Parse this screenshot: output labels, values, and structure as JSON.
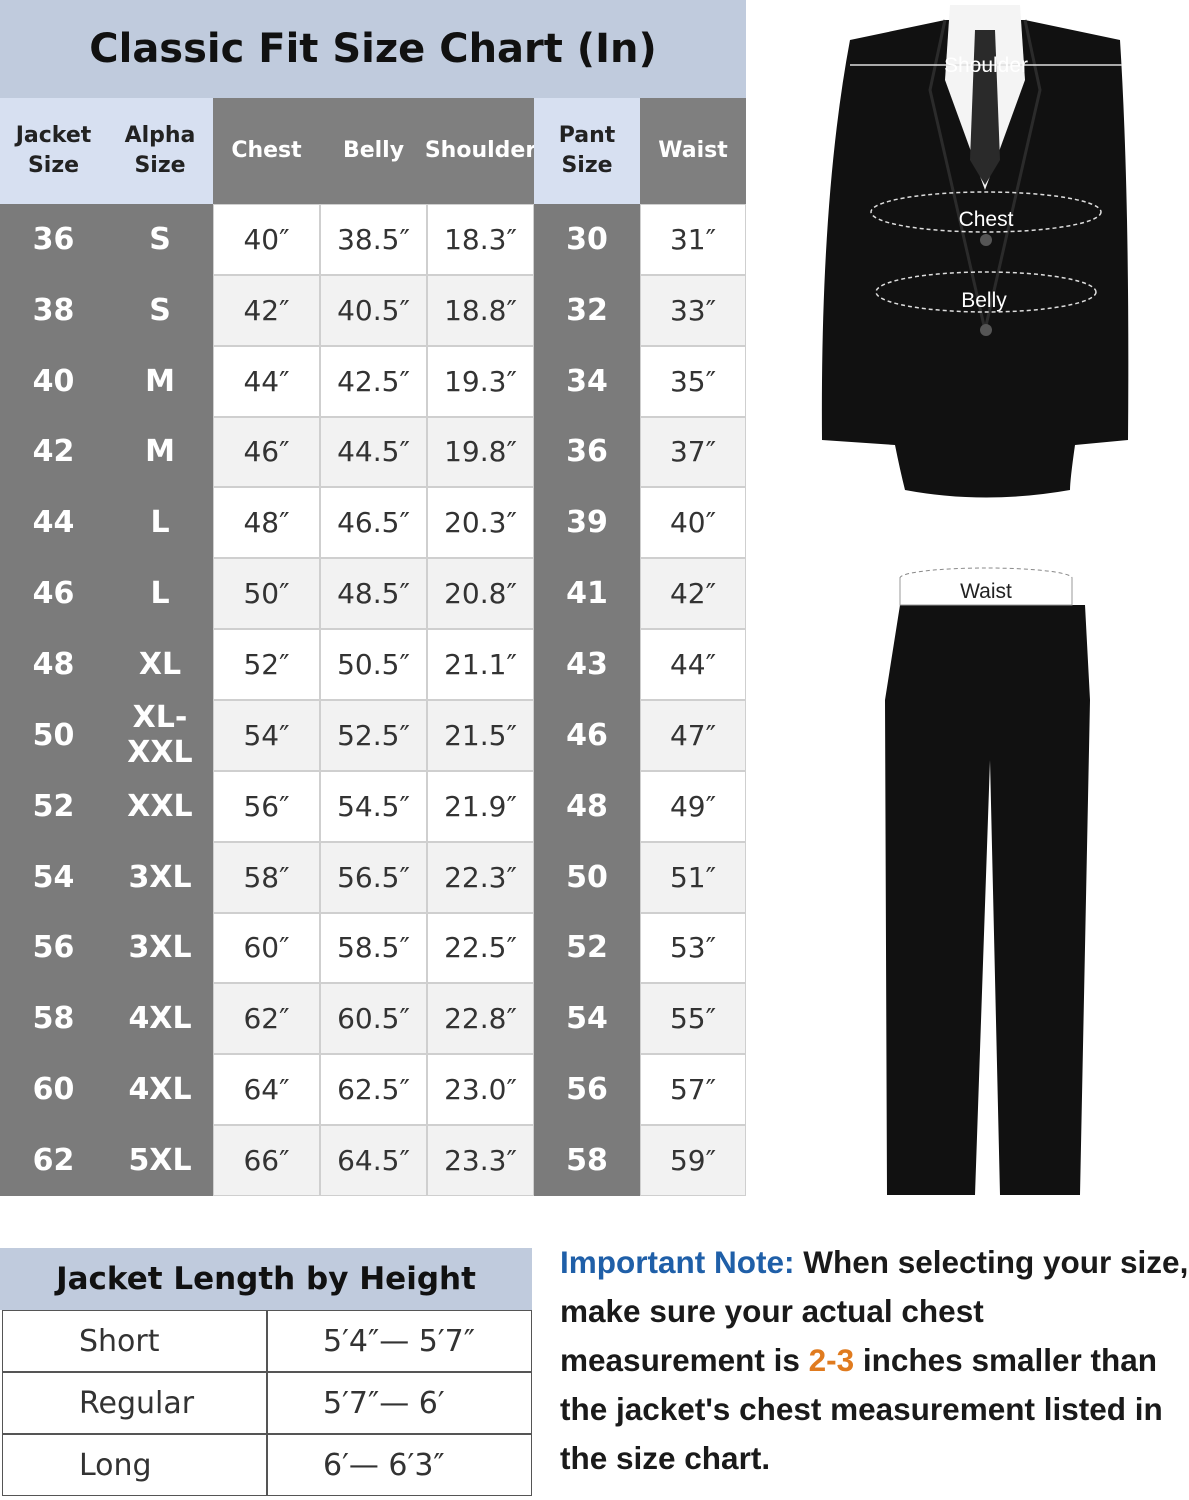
{
  "title": "Classic Fit Size Chart (In)",
  "headers": [
    "Jacket Size",
    "Alpha Size",
    "Chest",
    "Belly",
    "Shoulder",
    "Pant Size",
    "Waist"
  ],
  "rows": [
    [
      "36",
      "S",
      "40″",
      "38.5″",
      "18.3″",
      "30",
      "31″"
    ],
    [
      "38",
      "S",
      "42″",
      "40.5″",
      "18.8″",
      "32",
      "33″"
    ],
    [
      "40",
      "M",
      "44″",
      "42.5″",
      "19.3″",
      "34",
      "35″"
    ],
    [
      "42",
      "M",
      "46″",
      "44.5″",
      "19.8″",
      "36",
      "37″"
    ],
    [
      "44",
      "L",
      "48″",
      "46.5″",
      "20.3″",
      "39",
      "40″"
    ],
    [
      "46",
      "L",
      "50″",
      "48.5″",
      "20.8″",
      "41",
      "42″"
    ],
    [
      "48",
      "XL",
      "52″",
      "50.5″",
      "21.1″",
      "43",
      "44″"
    ],
    [
      "50",
      "XL-XXL",
      "54″",
      "52.5″",
      "21.5″",
      "46",
      "47″"
    ],
    [
      "52",
      "XXL",
      "56″",
      "54.5″",
      "21.9″",
      "48",
      "49″"
    ],
    [
      "54",
      "3XL",
      "58″",
      "56.5″",
      "22.3″",
      "50",
      "51″"
    ],
    [
      "56",
      "3XL",
      "60″",
      "58.5″",
      "22.5″",
      "52",
      "53″"
    ],
    [
      "58",
      "4XL",
      "62″",
      "60.5″",
      "22.8″",
      "54",
      "55″"
    ],
    [
      "60",
      "4XL",
      "64″",
      "62.5″",
      "23.0″",
      "56",
      "57″"
    ],
    [
      "62",
      "5XL",
      "66″",
      "64.5″",
      "23.3″",
      "58",
      "59″"
    ]
  ],
  "jacket_length": {
    "title": "Jacket Length by Height",
    "rows": [
      [
        "Short",
        "5′4″— 5′7″"
      ],
      [
        "Regular",
        "5′7″— 6′"
      ],
      [
        "Long",
        "6′— 6′3″"
      ]
    ]
  },
  "note": {
    "lead": "Important Note:",
    "text1": " When selecting your size, make sure your actual chest measurement is ",
    "highlight": "2-3",
    "text2": " inches smaller than the jacket's chest measurement listed in the size chart."
  },
  "figure_labels": {
    "shoulder": "Shoulder",
    "chest": "Chest",
    "belly": "Belly",
    "waist": "Waist"
  }
}
